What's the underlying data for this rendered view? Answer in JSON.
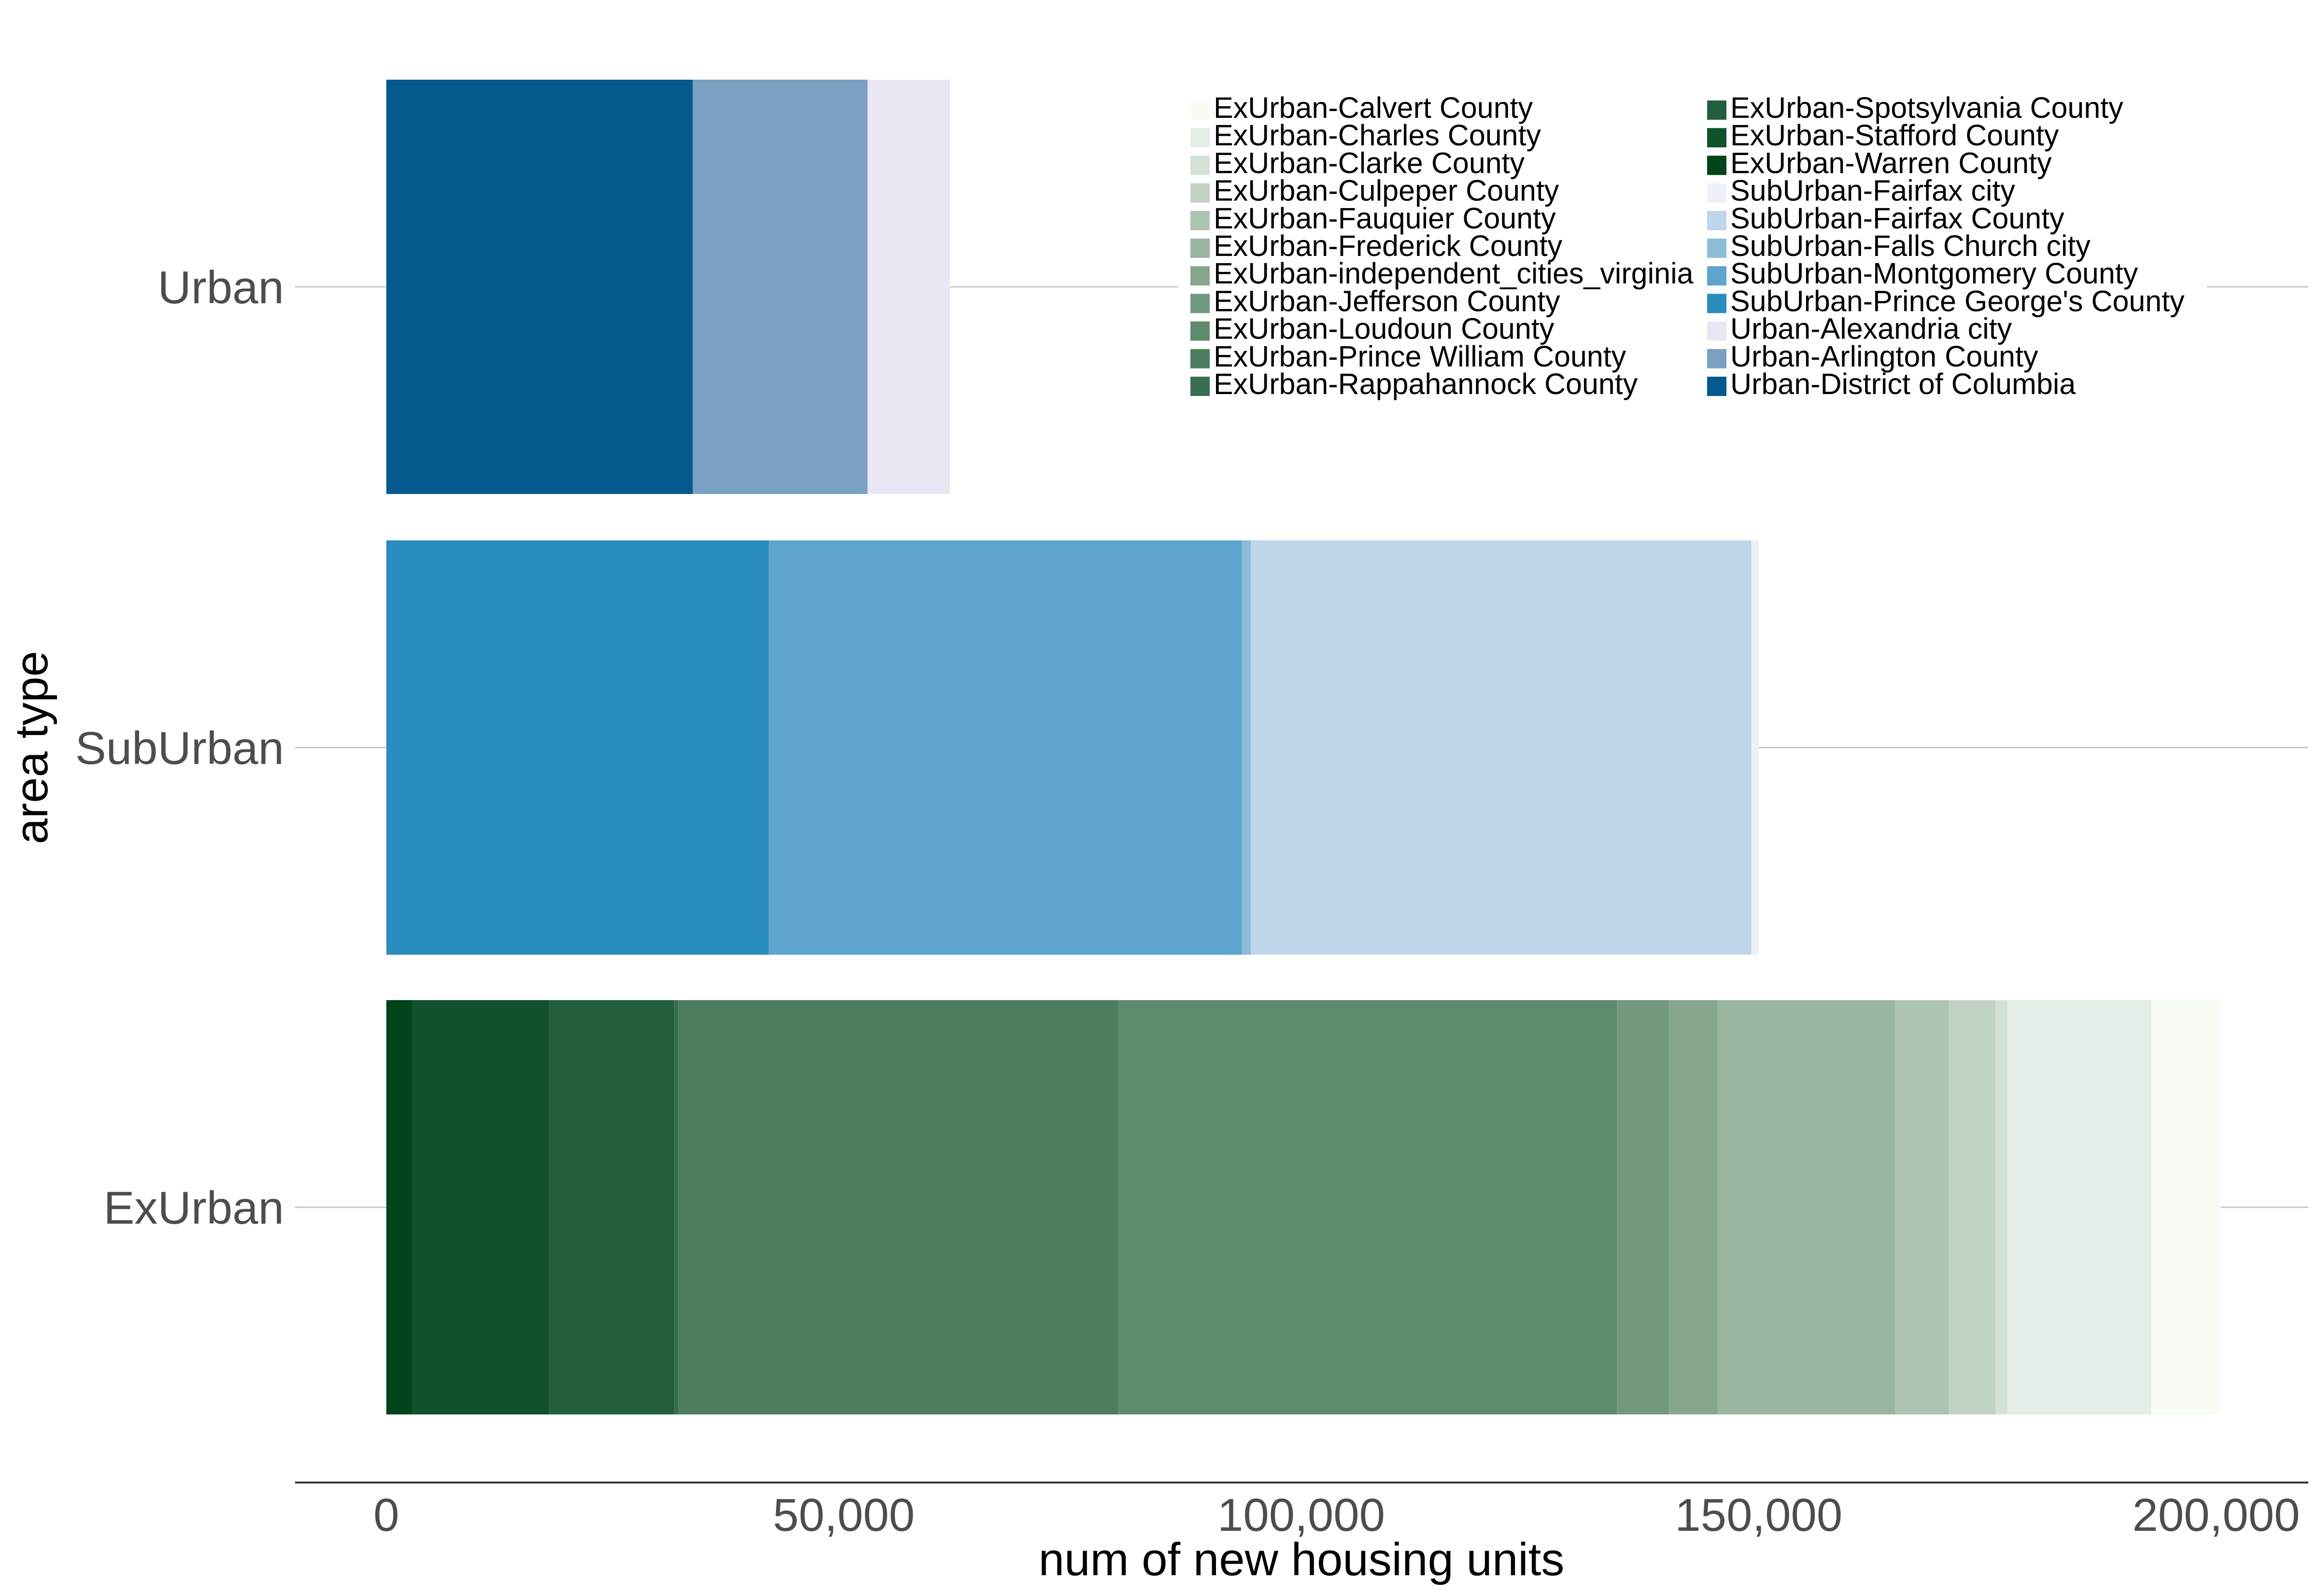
{
  "chart_data": {
    "type": "bar",
    "orientation": "horizontal",
    "stacked": true,
    "xlabel": "num of new housing units",
    "ylabel": "area type",
    "xlim": [
      -10000,
      210000
    ],
    "x_ticks": [
      0,
      50000,
      100000,
      150000,
      200000
    ],
    "x_tick_labels": [
      "0",
      "50,000",
      "100,000",
      "150,000",
      "200,000"
    ],
    "categories": [
      "Urban",
      "SubUrban",
      "ExUrban"
    ],
    "grid": {
      "horizontal_at_categories": true,
      "vertical": false
    },
    "legend_position": "top-right, inside plot, two columns",
    "series": [
      {
        "name": "ExUrban-Warren County",
        "category": "ExUrban",
        "value": 2800,
        "color": "#00441b"
      },
      {
        "name": "ExUrban-Stafford County",
        "category": "ExUrban",
        "value": 15000,
        "color": "#11512b"
      },
      {
        "name": "ExUrban-Spotsylvania County",
        "category": "ExUrban",
        "value": 13700,
        "color": "#245f3d"
      },
      {
        "name": "ExUrban-Rappahannock County",
        "category": "ExUrban",
        "value": 400,
        "color": "#386e4f"
      },
      {
        "name": "ExUrban-Prince William County",
        "category": "ExUrban",
        "value": 48100,
        "color": "#4c7d5f"
      },
      {
        "name": "ExUrban-Loudoun County",
        "category": "ExUrban",
        "value": 54500,
        "color": "#5f8b6d"
      },
      {
        "name": "ExUrban-Jefferson County",
        "category": "ExUrban",
        "value": 5700,
        "color": "#73997d"
      },
      {
        "name": "ExUrban-independent_cities_virginia",
        "category": "ExUrban",
        "value": 5300,
        "color": "#86a78e"
      },
      {
        "name": "ExUrban-Frederick County",
        "category": "ExUrban",
        "value": 19400,
        "color": "#9ab5a0"
      },
      {
        "name": "ExUrban-Fauquier County",
        "category": "ExUrban",
        "value": 5900,
        "color": "#adc4b2"
      },
      {
        "name": "ExUrban-Culpeper County",
        "category": "ExUrban",
        "value": 5100,
        "color": "#c1d3c4"
      },
      {
        "name": "ExUrban-Clarke County",
        "category": "ExUrban",
        "value": 1300,
        "color": "#d4e1d6"
      },
      {
        "name": "ExUrban-Charles County",
        "category": "ExUrban",
        "value": 15700,
        "color": "#e4ede6"
      },
      {
        "name": "ExUrban-Calvert County",
        "category": "ExUrban",
        "value": 7600,
        "color": "#f7fcf5"
      },
      {
        "name": "SubUrban-Prince George's County",
        "category": "SubUrban",
        "value": 41800,
        "color": "#2b8cbe"
      },
      {
        "name": "SubUrban-Montgomery County",
        "category": "SubUrban",
        "value": 51700,
        "color": "#5da5cc"
      },
      {
        "name": "SubUrban-Falls Church city",
        "category": "SubUrban",
        "value": 1000,
        "color": "#8dbcd9"
      },
      {
        "name": "SubUrban-Fairfax County",
        "category": "SubUrban",
        "value": 54700,
        "color": "#bfd5e9"
      },
      {
        "name": "SubUrban-Fairfax city",
        "category": "SubUrban",
        "value": 800,
        "color": "#eef0f9"
      },
      {
        "name": "Urban-District of Columbia",
        "category": "Urban",
        "value": 33500,
        "color": "#045a8d"
      },
      {
        "name": "Urban-Arlington County",
        "category": "Urban",
        "value": 19100,
        "color": "#7aa1c2"
      },
      {
        "name": "Urban-Alexandria city",
        "category": "Urban",
        "value": 9000,
        "color": "#ebe6f3"
      }
    ],
    "legend_order": [
      "ExUrban-Calvert County",
      "ExUrban-Charles County",
      "ExUrban-Clarke County",
      "ExUrban-Culpeper County",
      "ExUrban-Fauquier County",
      "ExUrban-Frederick County",
      "ExUrban-independent_cities_virginia",
      "ExUrban-Jefferson County",
      "ExUrban-Loudoun County",
      "ExUrban-Prince William County",
      "ExUrban-Rappahannock County",
      "ExUrban-Spotsylvania County",
      "ExUrban-Stafford County",
      "ExUrban-Warren County",
      "SubUrban-Fairfax city",
      "SubUrban-Fairfax County",
      "SubUrban-Falls Church city",
      "SubUrban-Montgomery County",
      "SubUrban-Prince George's County",
      "Urban-Alexandria city",
      "Urban-Arlington County",
      "Urban-District of Columbia"
    ]
  }
}
